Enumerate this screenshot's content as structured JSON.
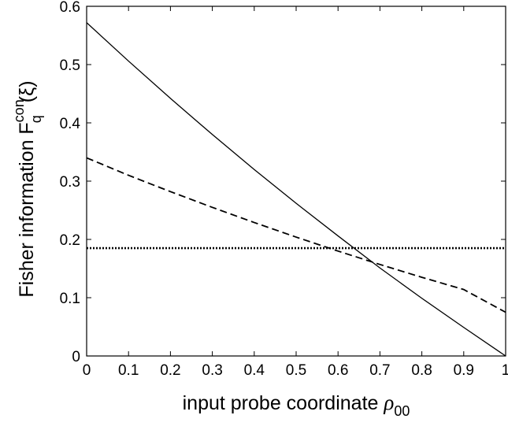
{
  "chart_data": {
    "type": "line",
    "xlim": [
      0,
      1
    ],
    "ylim": [
      0,
      0.6
    ],
    "xticks": [
      "0",
      "0.1",
      "0.2",
      "0.3",
      "0.4",
      "0.5",
      "0.6",
      "0.7",
      "0.8",
      "0.9",
      "1"
    ],
    "yticks": [
      "0",
      "0.1",
      "0.2",
      "0.3",
      "0.4",
      "0.5",
      "0.6"
    ],
    "xlabel": {
      "text": "input probe coordinate ",
      "symbol": "ρ",
      "subscript": "00"
    },
    "ylabel": {
      "text": "Fisher information F",
      "subscript": "q",
      "superscript": "con",
      "argument": "(ξ)"
    },
    "grid": false,
    "legend": "none",
    "series": [
      {
        "style": "solid",
        "color": "#000000",
        "x": [
          0,
          0.1,
          0.2,
          0.3,
          0.4,
          0.5,
          0.6,
          0.7,
          0.8,
          0.9,
          1.0
        ],
        "y": [
          0.572,
          0.506,
          0.442,
          0.38,
          0.32,
          0.262,
          0.206,
          0.151,
          0.099,
          0.049,
          0.0
        ]
      },
      {
        "style": "dashed",
        "color": "#000000",
        "x": [
          0,
          0.1,
          0.2,
          0.3,
          0.4,
          0.5,
          0.6,
          0.7,
          0.8,
          0.9,
          1.0
        ],
        "y": [
          0.34,
          0.31,
          0.282,
          0.255,
          0.229,
          0.204,
          0.18,
          0.157,
          0.135,
          0.114,
          0.075
        ]
      },
      {
        "style": "dotted",
        "color": "#000000",
        "x": [
          0,
          1.0
        ],
        "y": [
          0.185,
          0.185
        ]
      }
    ]
  }
}
